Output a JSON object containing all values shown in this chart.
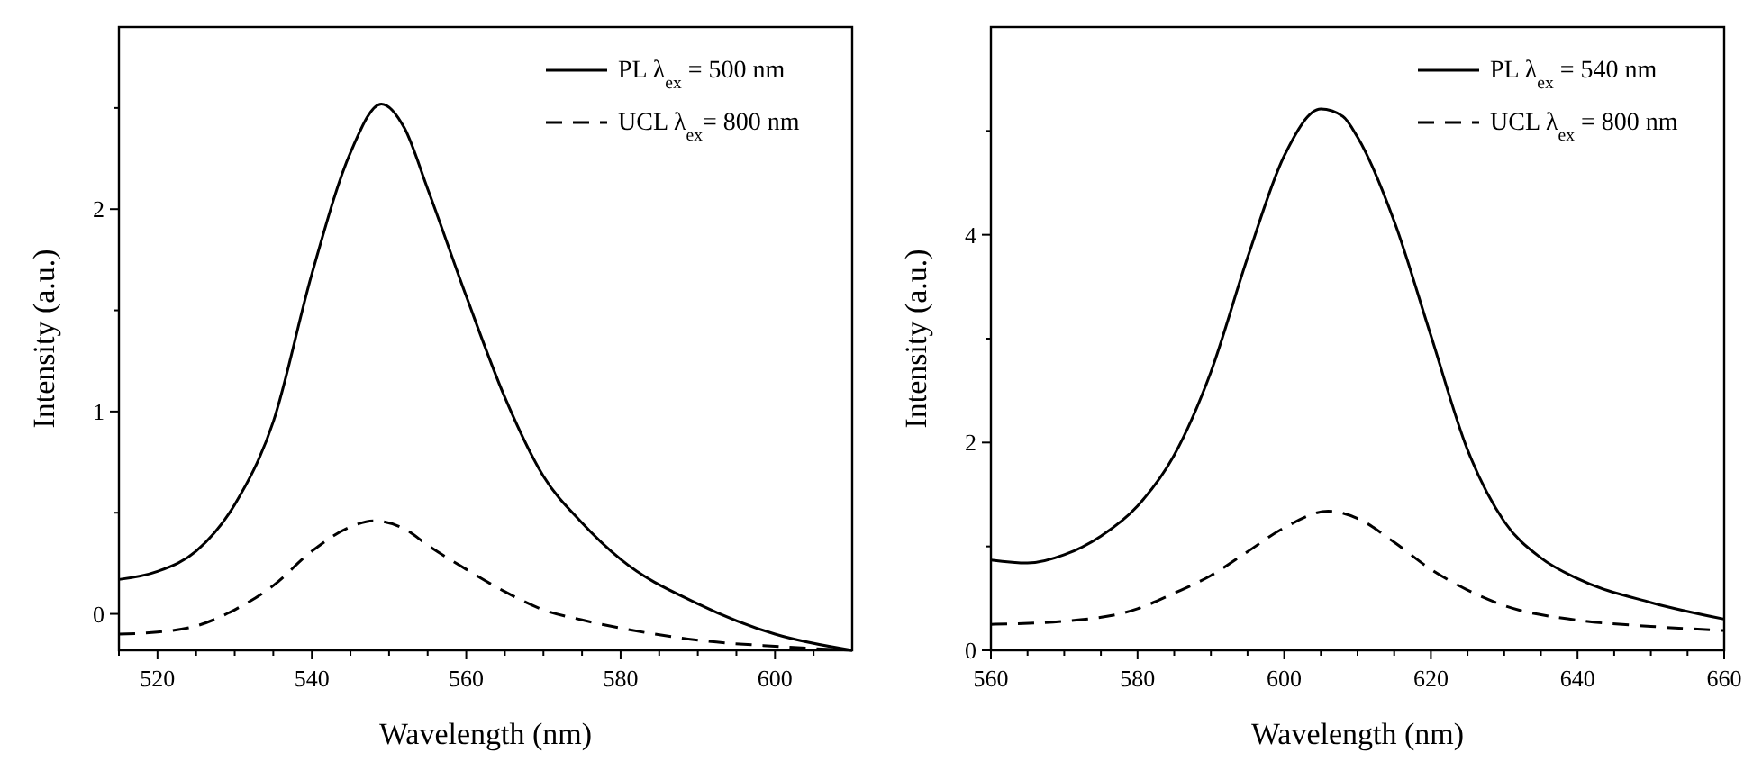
{
  "chart_data": [
    {
      "type": "line",
      "xlabel": "Wavelength (nm)",
      "ylabel": "Intensity (a.u.)",
      "xlim": [
        515,
        610
      ],
      "ylim": [
        -0.18,
        2.9
      ],
      "xticks": [
        {
          "value": 515,
          "label": null
        },
        520,
        {
          "value": 525,
          "label": null
        },
        {
          "value": 530,
          "label": null
        },
        {
          "value": 535,
          "label": null
        },
        540,
        {
          "value": 545,
          "label": null
        },
        {
          "value": 550,
          "label": null
        },
        {
          "value": 555,
          "label": null
        },
        560,
        {
          "value": 565,
          "label": null
        },
        {
          "value": 570,
          "label": null
        },
        {
          "value": 575,
          "label": null
        },
        580,
        {
          "value": 585,
          "label": null
        },
        {
          "value": 590,
          "label": null
        },
        {
          "value": 595,
          "label": null
        },
        600,
        {
          "value": 605,
          "label": null
        }
      ],
      "yticks": [
        0,
        {
          "value": 0.5,
          "label": null
        },
        1,
        {
          "value": 1.5,
          "label": null
        },
        2,
        {
          "value": 2.5,
          "label": null
        }
      ],
      "grid": false,
      "legend": "top right",
      "series": [
        {
          "name": "PL λ$_{ex}$ = 500 nm",
          "color": "#000000",
          "line_style": "solid",
          "x": [
            515,
            520,
            525,
            530,
            535,
            540,
            545,
            549,
            552,
            555,
            560,
            565,
            570,
            575,
            580,
            590,
            600,
            610
          ],
          "values": [
            0.17,
            0.21,
            0.31,
            0.54,
            0.95,
            1.68,
            2.28,
            2.52,
            2.4,
            2.1,
            1.57,
            1.07,
            0.68,
            0.45,
            0.27,
            0.05,
            -0.1,
            -0.18
          ]
        },
        {
          "name": "UCL λ$_{ex}$= 800 nm",
          "color": "#000000",
          "line_style": "dashed",
          "x": [
            515,
            520,
            525,
            530,
            535,
            540,
            545,
            548,
            552,
            555,
            560,
            565,
            570,
            575,
            580,
            590,
            600,
            610
          ],
          "values": [
            -0.1,
            -0.09,
            -0.06,
            0.02,
            0.14,
            0.31,
            0.43,
            0.46,
            0.42,
            0.34,
            0.22,
            0.11,
            0.02,
            -0.03,
            -0.07,
            -0.13,
            -0.16,
            -0.18
          ]
        }
      ]
    },
    {
      "type": "line",
      "xlabel": "Wavelength (nm)",
      "ylabel": "Intensity (a.u.)",
      "xlim": [
        560,
        660
      ],
      "ylim": [
        0,
        6
      ],
      "xticks": [
        560,
        {
          "value": 565,
          "label": null
        },
        {
          "value": 570,
          "label": null
        },
        {
          "value": 575,
          "label": null
        },
        580,
        {
          "value": 585,
          "label": null
        },
        {
          "value": 590,
          "label": null
        },
        {
          "value": 595,
          "label": null
        },
        600,
        {
          "value": 605,
          "label": null
        },
        {
          "value": 610,
          "label": null
        },
        {
          "value": 615,
          "label": null
        },
        620,
        {
          "value": 625,
          "label": null
        },
        {
          "value": 630,
          "label": null
        },
        {
          "value": 635,
          "label": null
        },
        640,
        {
          "value": 645,
          "label": null
        },
        {
          "value": 650,
          "label": null
        },
        {
          "value": 655,
          "label": null
        },
        660
      ],
      "yticks": [
        0,
        {
          "value": 1,
          "label": null
        },
        2,
        {
          "value": 3,
          "label": null
        },
        4,
        {
          "value": 5,
          "label": null
        }
      ],
      "grid": false,
      "legend": "top right",
      "series": [
        {
          "name": "PL λ$_{ex}$ = 540 nm",
          "color": "#000000",
          "line_style": "solid",
          "x": [
            560,
            565,
            570,
            575,
            580,
            585,
            590,
            595,
            600,
            605,
            608,
            610,
            615,
            620,
            625,
            630,
            635,
            640,
            650,
            660
          ],
          "values": [
            0.87,
            0.84,
            0.92,
            1.1,
            1.39,
            1.88,
            2.68,
            3.78,
            4.76,
            5.21,
            5.14,
            4.94,
            4.13,
            3.03,
            1.93,
            1.24,
            0.89,
            0.69,
            0.46,
            0.3
          ]
        },
        {
          "name": "UCL λ$_{ex}$ = 800 nm",
          "color": "#000000",
          "line_style": "dashed",
          "x": [
            560,
            570,
            580,
            585,
            590,
            595,
            600,
            606,
            610,
            615,
            620,
            625,
            630,
            640,
            650,
            660
          ],
          "values": [
            0.25,
            0.28,
            0.4,
            0.55,
            0.72,
            0.95,
            1.18,
            1.34,
            1.27,
            1.04,
            0.78,
            0.58,
            0.43,
            0.29,
            0.23,
            0.19
          ]
        }
      ]
    }
  ]
}
